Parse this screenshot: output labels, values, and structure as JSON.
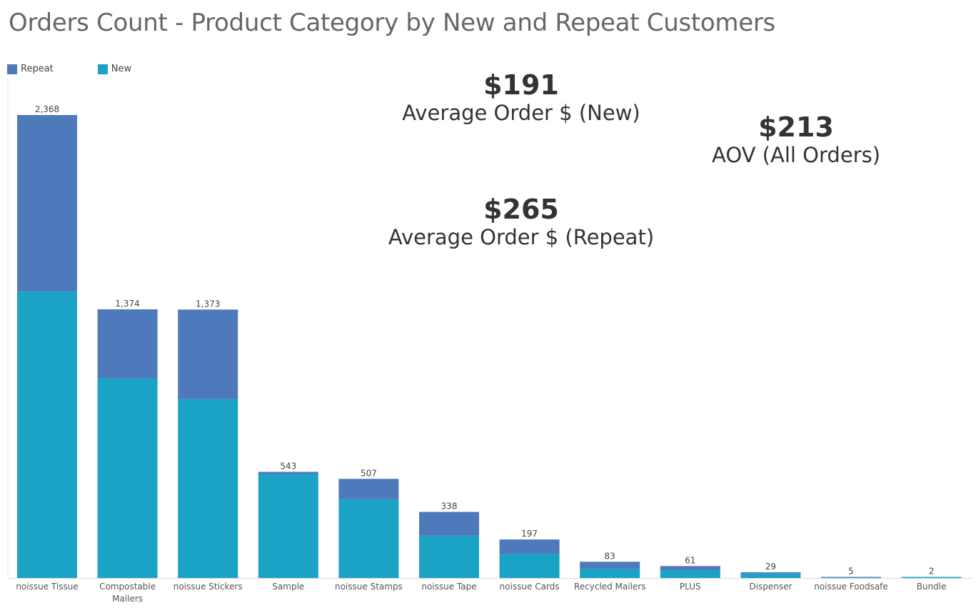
{
  "title": "Orders Count - Product Category by New and Repeat Customers",
  "legend": [
    {
      "label": "Repeat",
      "color": "#4E79BA"
    },
    {
      "label": "New",
      "color": "#1BA3C6"
    }
  ],
  "kpis": {
    "new": {
      "value": "$191",
      "label": "Average Order $ (New)"
    },
    "repeat": {
      "value": "$265",
      "label": "Average Order $ (Repeat)"
    },
    "all": {
      "value": "$213",
      "label": "AOV (All Orders)"
    }
  },
  "chart_data": {
    "type": "bar",
    "stacked": true,
    "title": "Orders Count - Product Category by New and Repeat Customers",
    "categories": [
      "noissue Tissue",
      "Compostable Mailers",
      "noissue Stickers",
      "Sample",
      "noissue Stamps",
      "noissue Tape",
      "noissue Cards",
      "Recycled Mailers",
      "PLUS",
      "Dispenser",
      "noissue Foodsafe",
      "Bundle"
    ],
    "category_labels": [
      [
        "noissue Tissue"
      ],
      [
        "Compostable",
        "Mailers"
      ],
      [
        "noissue Stickers"
      ],
      [
        "Sample"
      ],
      [
        "noissue Stamps"
      ],
      [
        "noissue Tape"
      ],
      [
        "noissue Cards"
      ],
      [
        "Recycled Mailers"
      ],
      [
        "PLUS"
      ],
      [
        "Dispenser"
      ],
      [
        "noissue Foodsafe"
      ],
      [
        "Bundle"
      ]
    ],
    "totals": [
      2368,
      1374,
      1373,
      543,
      507,
      338,
      197,
      83,
      61,
      29,
      5,
      2
    ],
    "total_labels": [
      "2,368",
      "1,374",
      "1,373",
      "543",
      "507",
      "338",
      "197",
      "83",
      "61",
      "29",
      "5",
      "2"
    ],
    "series": [
      {
        "name": "New",
        "color": "#1BA3C6",
        "values": [
          1465,
          1020,
          915,
          530,
          403,
          217,
          124,
          48,
          40,
          24,
          4,
          2
        ]
      },
      {
        "name": "Repeat",
        "color": "#4E79BA",
        "values": [
          903,
          354,
          458,
          13,
          104,
          121,
          73,
          35,
          21,
          5,
          1,
          0
        ]
      }
    ],
    "ylim": [
      0,
      2368
    ],
    "xlabel": "",
    "ylabel": "",
    "grid": false,
    "legend_position": "top-left"
  }
}
